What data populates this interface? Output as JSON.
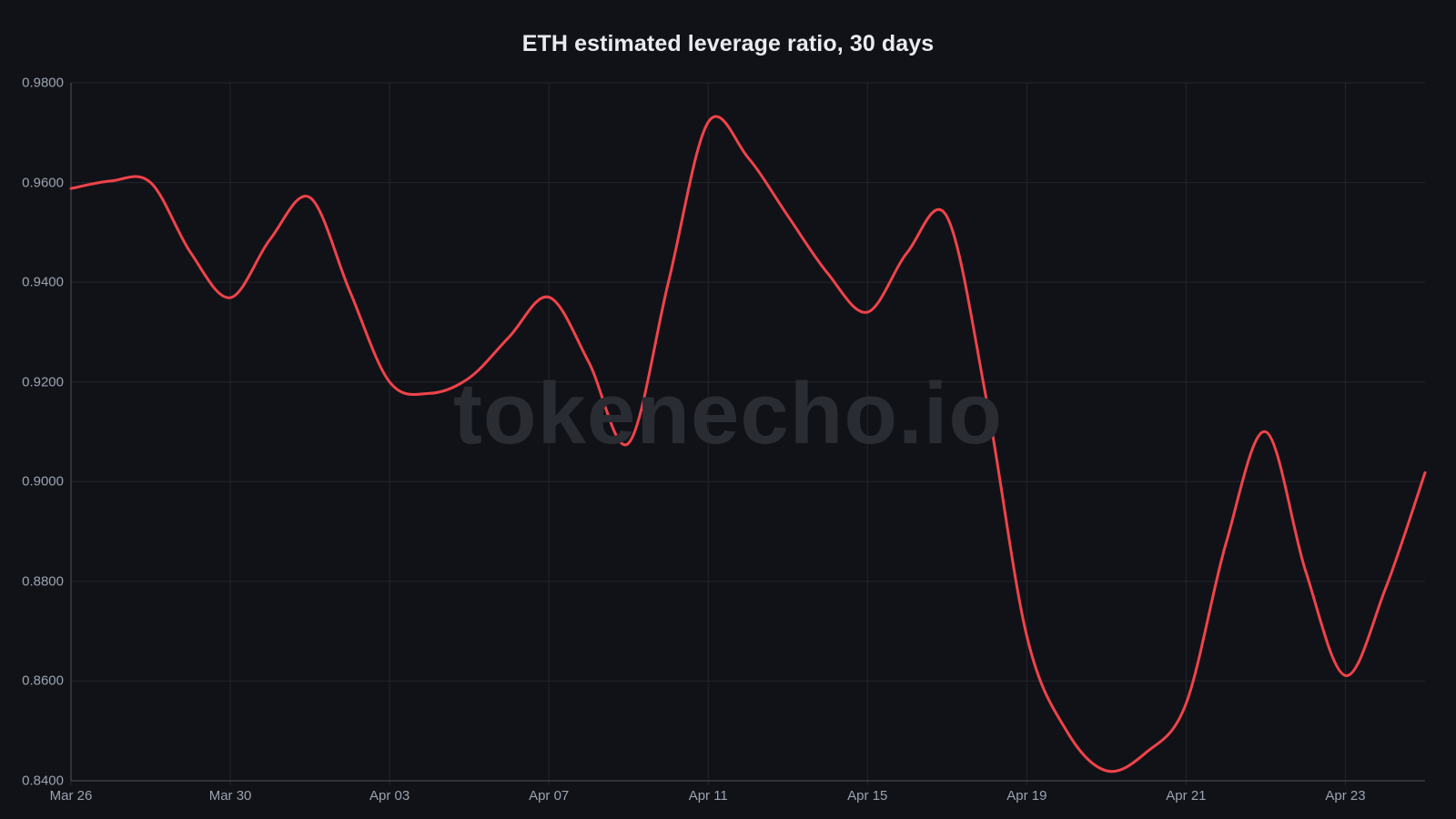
{
  "chart_data": {
    "type": "line",
    "title": "ETH estimated leverage ratio, 30 days",
    "xlabel": "",
    "ylabel": "",
    "ylim": [
      0.84,
      0.98
    ],
    "yticks": [
      "0.9800",
      "0.9600",
      "0.9400",
      "0.9200",
      "0.9000",
      "0.8800",
      "0.8600",
      "0.8400"
    ],
    "xticks": [
      "Mar 26",
      "Mar 30",
      "Apr 03",
      "Apr 07",
      "Apr 11",
      "Apr 15",
      "Apr 19",
      "Apr 21",
      "Apr 23"
    ],
    "xtick_indices": [
      0,
      4,
      8,
      12,
      16,
      20,
      24,
      28,
      32
    ],
    "grid": true,
    "legend": null,
    "watermark": "tokenecho.io",
    "series": [
      {
        "name": "ETH estimated leverage ratio",
        "color": "#f0434a",
        "values": [
          0.9588,
          0.9603,
          0.96,
          0.946,
          0.9369,
          0.9486,
          0.957,
          0.9382,
          0.92,
          0.9177,
          0.9208,
          0.929,
          0.937,
          0.924,
          0.9077,
          0.94,
          0.9721,
          0.965,
          0.9533,
          0.9418,
          0.934,
          0.946,
          0.9531,
          0.9159,
          0.869,
          0.85,
          0.842,
          0.8457,
          0.8555,
          0.8876,
          0.91,
          0.8821,
          0.8611,
          0.8784,
          0.9018
        ]
      }
    ]
  },
  "colors": {
    "background": "#111217",
    "grid": "#23262c",
    "axis": "#3a3d45",
    "tick_label": "#9aa3b0",
    "title": "#e8ebf0",
    "line": "#f0434a",
    "watermark": "#2a2c33"
  }
}
